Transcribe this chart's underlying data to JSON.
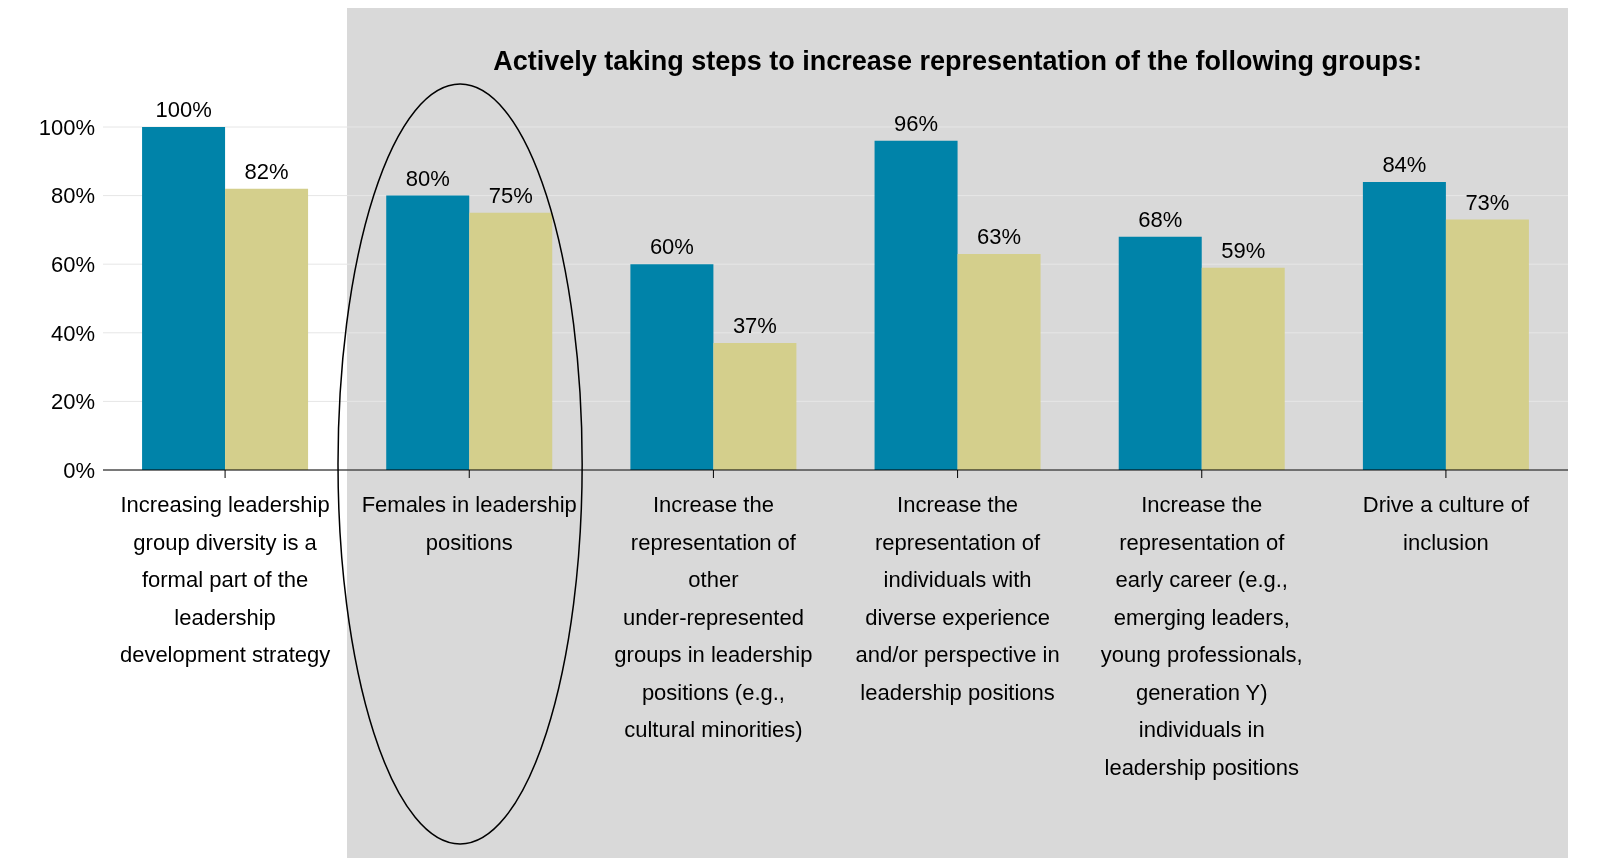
{
  "chart_data": {
    "type": "bar",
    "title": "Actively taking steps to increase representation of the following groups:",
    "categories": [
      "Increasing leadership group diversity is a formal part of the leadership development strategy",
      "Females in leadership positions",
      "Increase the representation of other under-represented groups in leadership positions (e.g., cultural minorities)",
      "Increase the representation of individuals with diverse experience and/or perspective in leadership positions",
      "Increase the representation of early career (e.g., emerging leaders, young professionals, generation Y) individuals in leadership positions",
      "Drive a culture of inclusion"
    ],
    "series": [
      {
        "color": "#0083a9",
        "values": [
          100,
          80,
          60,
          96,
          68,
          84
        ],
        "value_labels": [
          "100%",
          "80%",
          "60%",
          "96%",
          "68%",
          "84%"
        ]
      },
      {
        "color": "#d4cf8c",
        "values": [
          82,
          75,
          37,
          63,
          59,
          73
        ],
        "value_labels": [
          "82%",
          "75%",
          "37%",
          "63%",
          "59%",
          "73%"
        ]
      }
    ],
    "ylim": [
      0,
      100
    ],
    "yticks": [
      {
        "value": 0,
        "label": "0%"
      },
      {
        "value": 20,
        "label": "20%"
      },
      {
        "value": 40,
        "label": "40%"
      },
      {
        "value": 60,
        "label": "60%"
      },
      {
        "value": 80,
        "label": "80%"
      },
      {
        "value": 100,
        "label": "100%"
      }
    ],
    "grid": "y",
    "bands": [
      {
        "axis": "x",
        "from": "Females in leadership positions",
        "to": "Drive a culture of inclusion",
        "color": "#d9d9d9"
      }
    ]
  }
}
